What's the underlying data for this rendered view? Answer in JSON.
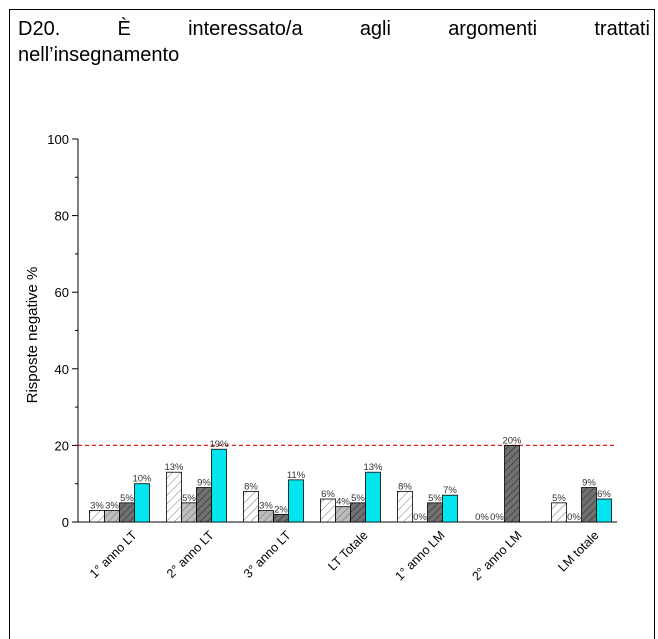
{
  "question": {
    "line1_words": [
      "D20.",
      "È",
      "interessato/a",
      "agli",
      "argomenti",
      "trattati"
    ],
    "line2": "nell’insegnamento"
  },
  "chart_data": {
    "type": "bar",
    "ylabel": "Risposte negative %",
    "ylim": [
      0,
      100
    ],
    "yticks": [
      0,
      20,
      40,
      60,
      80,
      100
    ],
    "threshold": 20,
    "categories": [
      "1° anno LT",
      "2° anno LT",
      "3° anno LT",
      "LT Totale",
      "1° anno LM",
      "2° anno LM",
      "LM totale"
    ],
    "series": [
      {
        "values": [
          3,
          13,
          8,
          6,
          8,
          0,
          5
        ],
        "labels": [
          "3%",
          "13%",
          "8%",
          "6%",
          "8%",
          "0%",
          "5%"
        ],
        "fill": "#ffffff",
        "pattern": "light-hatch"
      },
      {
        "values": [
          3,
          5,
          3,
          4,
          0,
          0,
          0
        ],
        "labels": [
          "3%",
          "5%",
          "3%",
          "4%",
          "0%",
          "0%",
          "0%"
        ],
        "fill": "#bdbdbd",
        "pattern": "hatch"
      },
      {
        "values": [
          5,
          9,
          2,
          5,
          5,
          20,
          9
        ],
        "labels": [
          "5%",
          "9%",
          "2%",
          "5%",
          "5%",
          "20%",
          "9%"
        ],
        "fill": "#707070",
        "pattern": "dark-hatch"
      },
      {
        "values": [
          10,
          19,
          11,
          13,
          7,
          null,
          6
        ],
        "labels": [
          "10%",
          "19%",
          "11%",
          "13%",
          "7%",
          "",
          "6%"
        ],
        "fill": "#00e5ee",
        "pattern": "solid"
      }
    ],
    "colors": {
      "threshold_line": "#e02020",
      "axis": "#000000",
      "text": "#000000"
    }
  }
}
